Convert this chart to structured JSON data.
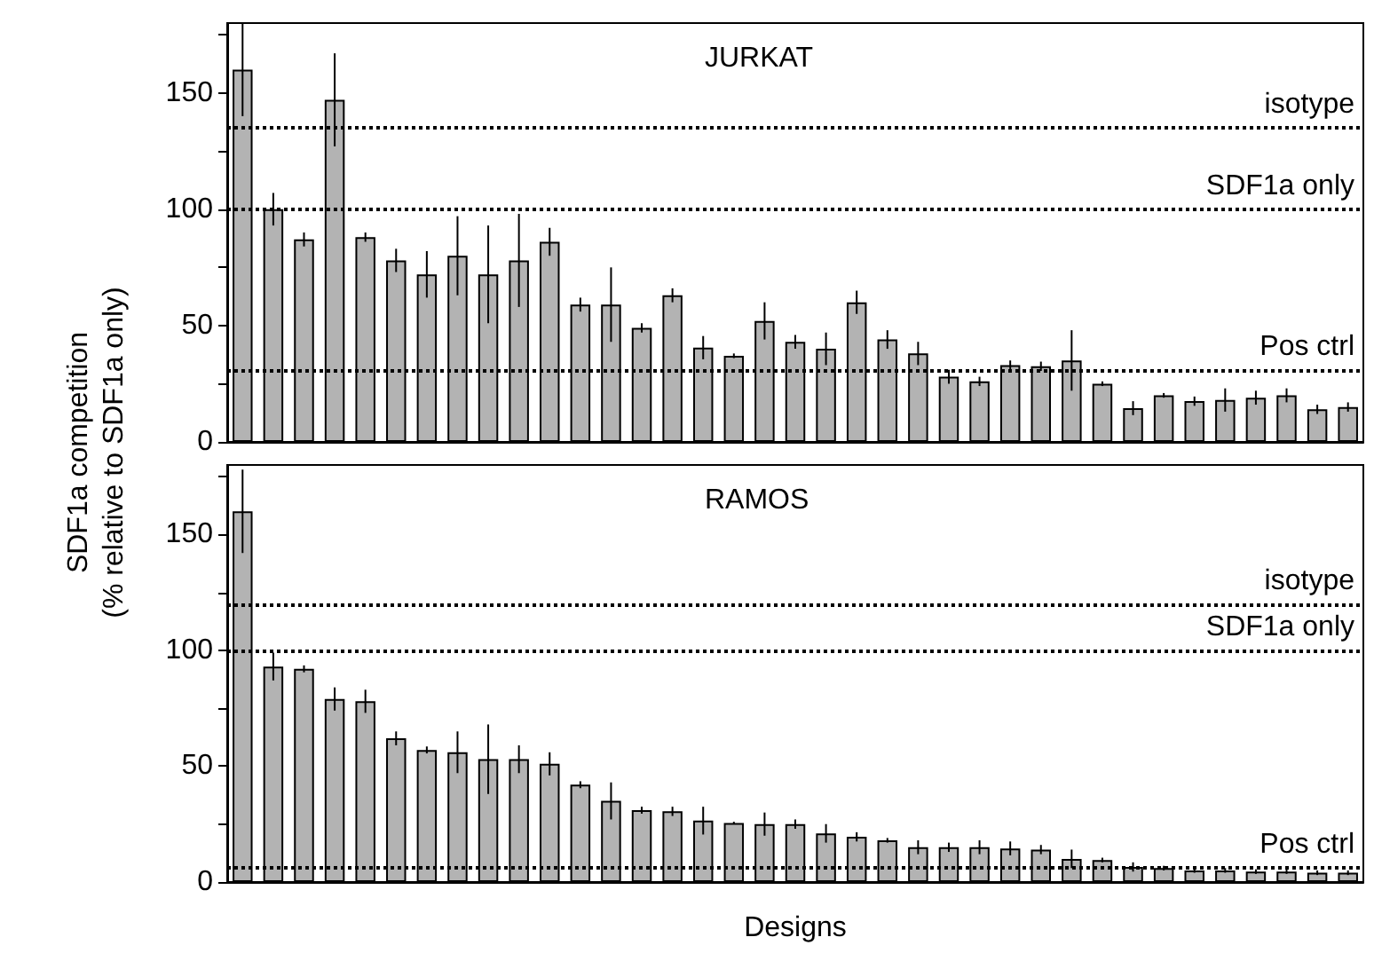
{
  "chart_data": [
    {
      "type": "bar",
      "title": "JURKAT",
      "ylabel": "SDF1a competition\n(% relative to SDF1a only)",
      "categories": [
        null,
        null,
        null,
        null,
        null,
        null,
        null,
        null,
        null,
        null,
        null,
        null,
        null,
        null,
        null,
        null,
        null,
        null,
        null,
        null,
        null,
        null,
        null,
        null,
        null,
        null,
        null,
        null,
        null,
        null,
        null,
        null,
        null,
        null,
        null,
        null,
        null
      ],
      "values": [
        160,
        100,
        87,
        147,
        88,
        78,
        72,
        80,
        72,
        78,
        86,
        59,
        59,
        49,
        63,
        40.5,
        37,
        52,
        43,
        40,
        60,
        44,
        38,
        28,
        26,
        33,
        32.5,
        35,
        25,
        14.5,
        20,
        17.5,
        18,
        19,
        20,
        14,
        15
      ],
      "errors": [
        20,
        7,
        3,
        20,
        2,
        5,
        10,
        17,
        21,
        20,
        6,
        3,
        16,
        2,
        3,
        5,
        1,
        8,
        3,
        7,
        5,
        4,
        5,
        3,
        2,
        2,
        2,
        13,
        1,
        3,
        1,
        2,
        5,
        3,
        3,
        2,
        2
      ],
      "color": "#b3b3b3",
      "ylim": [
        0,
        180
      ],
      "yticks": [
        0,
        {
          "value": 25,
          "label": null
        },
        50,
        {
          "value": 75,
          "label": null
        },
        100,
        {
          "value": 125,
          "label": null
        },
        150,
        {
          "value": 175,
          "label": null
        }
      ],
      "ref_lines": [
        {
          "axis": "y",
          "value": 135,
          "label": "isotype",
          "line_style": "dotted"
        },
        {
          "axis": "y",
          "value": 100,
          "label": "SDF1a only",
          "line_style": "dotted"
        },
        {
          "axis": "y",
          "value": 31,
          "label": "Pos ctrl",
          "line_style": "dotted"
        }
      ],
      "tick_labels": "y",
      "grid": false
    },
    {
      "type": "bar",
      "title": "RAMOS",
      "xlabel": "Designs",
      "categories": [
        null,
        null,
        null,
        null,
        null,
        null,
        null,
        null,
        null,
        null,
        null,
        null,
        null,
        null,
        null,
        null,
        null,
        null,
        null,
        null,
        null,
        null,
        null,
        null,
        null,
        null,
        null,
        null,
        null,
        null,
        null,
        null,
        null,
        null,
        null,
        null,
        null
      ],
      "values": [
        160,
        93,
        92,
        79,
        78,
        62,
        57,
        56,
        53,
        53,
        51,
        42,
        35,
        31,
        30.5,
        26.5,
        25.5,
        25,
        25,
        21,
        19.5,
        18,
        15,
        15,
        15,
        14.5,
        14,
        10,
        9.5,
        6.5,
        6,
        5,
        5,
        4.5,
        4.5,
        4,
        4
      ],
      "errors": [
        18,
        6,
        1.5,
        5,
        5,
        3,
        1.5,
        9,
        15,
        6,
        5,
        1.5,
        8,
        1.5,
        2,
        6,
        0.5,
        5,
        2,
        4,
        2,
        1,
        3,
        2,
        3,
        3,
        2,
        4,
        1,
        2,
        1,
        1,
        1,
        1,
        1,
        1,
        1
      ],
      "color": "#b3b3b3",
      "ylim": [
        0,
        180
      ],
      "yticks": [
        0,
        {
          "value": 25,
          "label": null
        },
        50,
        {
          "value": 75,
          "label": null
        },
        100,
        {
          "value": 125,
          "label": null
        },
        150,
        {
          "value": 175,
          "label": null
        }
      ],
      "ref_lines": [
        {
          "axis": "y",
          "value": 120,
          "label": "isotype",
          "line_style": "dotted"
        },
        {
          "axis": "y",
          "value": 100,
          "label": "SDF1a only",
          "line_style": "dotted"
        },
        {
          "axis": "y",
          "value": 6,
          "label": "Pos ctrl",
          "line_style": "dotted"
        }
      ],
      "tick_labels": "y",
      "grid": false
    }
  ]
}
